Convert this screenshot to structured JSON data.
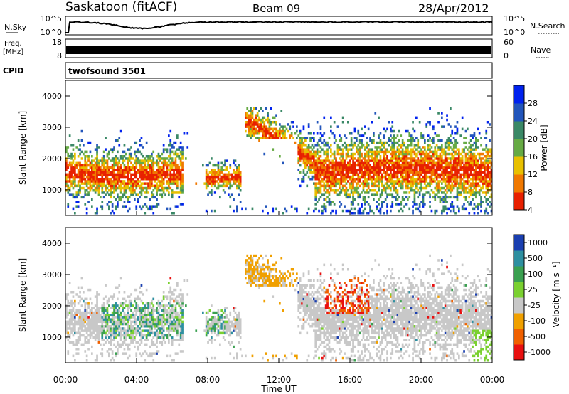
{
  "header": {
    "station": "Saskatoon (fitACF)",
    "beam": "Beam 09",
    "date": "28/Apr/2012"
  },
  "strips": {
    "nsky_label": "N.Sky",
    "nsky_ticks": [
      "10^5",
      "10^0"
    ],
    "nsearch_label": "N.Search",
    "freq_label": "Freq.",
    "freq_unit": "[MHz]",
    "freq_ticks": [
      "18",
      "8"
    ],
    "nave_label": "Nave",
    "nave_ticks": [
      "60",
      "0"
    ],
    "cpid_label": "CPID",
    "cpid_value": "twofsound 3501"
  },
  "axes": {
    "ylabel": "Slant Range [km]",
    "y_ticks": [
      "4000",
      "3000",
      "2000",
      "1000"
    ],
    "x_ticks": [
      "00:00",
      "04:00",
      "08:00",
      "12:00",
      "16:00",
      "20:00",
      "00:00"
    ],
    "xlabel": "Time UT"
  },
  "colorbars": {
    "power": {
      "label": "Power [dB]",
      "ticks": [
        "28",
        "24",
        "20",
        "16",
        "12",
        "8",
        "4"
      ],
      "colors": [
        "#0022ee",
        "#2255bb",
        "#3a8866",
        "#66aa44",
        "#e8c000",
        "#f07800",
        "#e82000"
      ]
    },
    "velocity": {
      "label": "Velocity [m s⁻¹]",
      "ticks": [
        "1000",
        "500",
        "100",
        "25",
        "-25",
        "-100",
        "-500",
        "-1000"
      ],
      "colors": [
        "#1a3fb0",
        "#2e8fa0",
        "#3aa050",
        "#7ad030",
        "#c8c8c8",
        "#f0a000",
        "#f06000",
        "#e81010"
      ]
    }
  },
  "chart_data": {
    "type": "heatmap",
    "x_range": [
      "00:00",
      "00:00"
    ],
    "y_range_km": [
      180,
      4500
    ],
    "panels": [
      {
        "quantity": "Power",
        "unit": "dB",
        "range": [
          0,
          30
        ]
      },
      {
        "quantity": "Velocity",
        "unit": "m/s",
        "range": [
          -1000,
          1000
        ]
      }
    ],
    "frequency_mhz": [
      8,
      18
    ],
    "nave_range": [
      0,
      60
    ]
  }
}
